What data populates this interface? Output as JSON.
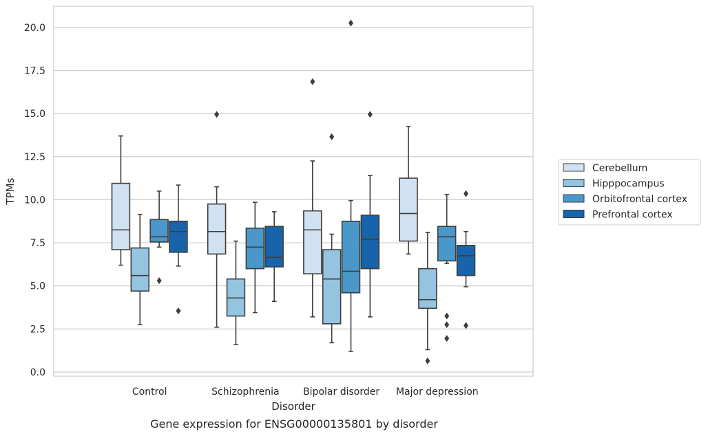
{
  "chart_data": {
    "type": "box",
    "title": "",
    "caption": "Gene expression for ENSG00000135801 by disorder",
    "xlabel": "Disorder",
    "ylabel": "TPMs",
    "ylim": [
      -0.3,
      21.2
    ],
    "yticks": [
      0.0,
      2.5,
      5.0,
      7.5,
      10.0,
      12.5,
      15.0,
      17.5,
      20.0
    ],
    "ytick_labels": [
      "0.0",
      "2.5",
      "5.0",
      "7.5",
      "10.0",
      "12.5",
      "15.0",
      "17.5",
      "20.0"
    ],
    "categories": [
      "Control",
      "Schizophrenia",
      "Bipolar disorder",
      "Major depression"
    ],
    "grid": true,
    "legend_position": "right",
    "series": [
      {
        "name": "Cerebellum",
        "color": "#d0e1f2",
        "boxes": [
          {
            "min": 6.2,
            "q1": 7.1,
            "median": 8.25,
            "q3": 10.95,
            "max": 13.7,
            "outliers": []
          },
          {
            "min": 2.6,
            "q1": 6.85,
            "median": 8.15,
            "q3": 9.75,
            "max": 10.75,
            "outliers": [
              14.95
            ]
          },
          {
            "min": 3.2,
            "q1": 5.7,
            "median": 8.25,
            "q3": 9.35,
            "max": 12.25,
            "outliers": [
              16.85
            ]
          },
          {
            "min": 6.85,
            "q1": 7.6,
            "median": 9.2,
            "q3": 11.25,
            "max": 14.25,
            "outliers": []
          }
        ]
      },
      {
        "name": "Hipppocampus",
        "color": "#94c4df",
        "boxes": [
          {
            "min": 2.75,
            "q1": 4.7,
            "median": 5.6,
            "q3": 7.2,
            "max": 9.15,
            "outliers": []
          },
          {
            "min": 1.6,
            "q1": 3.25,
            "median": 4.3,
            "q3": 5.4,
            "max": 7.6,
            "outliers": []
          },
          {
            "min": 1.7,
            "q1": 2.8,
            "median": 5.4,
            "q3": 7.1,
            "max": 8.0,
            "outliers": [
              13.65
            ]
          },
          {
            "min": 1.3,
            "q1": 3.7,
            "median": 4.2,
            "q3": 6.0,
            "max": 8.1,
            "outliers": [
              0.65
            ]
          }
        ]
      },
      {
        "name": "Orbitofrontal cortex",
        "color": "#4a98c9",
        "boxes": [
          {
            "min": 7.25,
            "q1": 7.55,
            "median": 7.85,
            "q3": 8.85,
            "max": 10.5,
            "outliers": [
              5.3
            ]
          },
          {
            "min": 3.45,
            "q1": 6.0,
            "median": 7.25,
            "q3": 8.35,
            "max": 9.85,
            "outliers": []
          },
          {
            "min": 1.2,
            "q1": 4.6,
            "median": 5.85,
            "q3": 8.75,
            "max": 9.95,
            "outliers": [
              20.25
            ]
          },
          {
            "min": 6.3,
            "q1": 6.45,
            "median": 7.85,
            "q3": 8.45,
            "max": 10.3,
            "outliers": [
              3.25,
              2.75,
              1.95
            ]
          }
        ]
      },
      {
        "name": "Prefrontal cortex",
        "color": "#1764ab",
        "boxes": [
          {
            "min": 6.15,
            "q1": 6.95,
            "median": 8.15,
            "q3": 8.75,
            "max": 10.85,
            "outliers": [
              3.55
            ]
          },
          {
            "min": 4.1,
            "q1": 6.1,
            "median": 6.65,
            "q3": 8.45,
            "max": 9.3,
            "outliers": []
          },
          {
            "min": 3.2,
            "q1": 6.0,
            "median": 7.7,
            "q3": 9.1,
            "max": 11.4,
            "outliers": [
              14.95
            ]
          },
          {
            "min": 4.95,
            "q1": 5.6,
            "median": 6.75,
            "q3": 7.35,
            "max": 8.15,
            "outliers": [
              10.35,
              2.7
            ]
          }
        ]
      }
    ]
  }
}
